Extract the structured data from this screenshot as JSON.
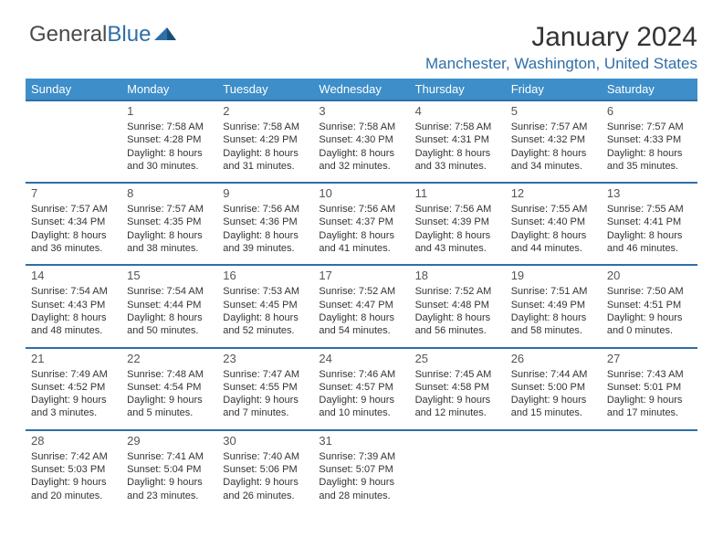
{
  "logo": {
    "text1": "General",
    "text2": "Blue"
  },
  "title": "January 2024",
  "location": "Manchester, Washington, United States",
  "colors": {
    "header_bg": "#3d8ec9",
    "header_text": "#ffffff",
    "border": "#2f6fa7",
    "accent": "#2f6fa7",
    "text": "#333333",
    "daynum": "#555555"
  },
  "day_names": [
    "Sunday",
    "Monday",
    "Tuesday",
    "Wednesday",
    "Thursday",
    "Friday",
    "Saturday"
  ],
  "weeks": [
    [
      {
        "n": "",
        "s": "",
        "t": "",
        "d": ""
      },
      {
        "n": "1",
        "s": "Sunrise: 7:58 AM",
        "t": "Sunset: 4:28 PM",
        "d": "Daylight: 8 hours and 30 minutes."
      },
      {
        "n": "2",
        "s": "Sunrise: 7:58 AM",
        "t": "Sunset: 4:29 PM",
        "d": "Daylight: 8 hours and 31 minutes."
      },
      {
        "n": "3",
        "s": "Sunrise: 7:58 AM",
        "t": "Sunset: 4:30 PM",
        "d": "Daylight: 8 hours and 32 minutes."
      },
      {
        "n": "4",
        "s": "Sunrise: 7:58 AM",
        "t": "Sunset: 4:31 PM",
        "d": "Daylight: 8 hours and 33 minutes."
      },
      {
        "n": "5",
        "s": "Sunrise: 7:57 AM",
        "t": "Sunset: 4:32 PM",
        "d": "Daylight: 8 hours and 34 minutes."
      },
      {
        "n": "6",
        "s": "Sunrise: 7:57 AM",
        "t": "Sunset: 4:33 PM",
        "d": "Daylight: 8 hours and 35 minutes."
      }
    ],
    [
      {
        "n": "7",
        "s": "Sunrise: 7:57 AM",
        "t": "Sunset: 4:34 PM",
        "d": "Daylight: 8 hours and 36 minutes."
      },
      {
        "n": "8",
        "s": "Sunrise: 7:57 AM",
        "t": "Sunset: 4:35 PM",
        "d": "Daylight: 8 hours and 38 minutes."
      },
      {
        "n": "9",
        "s": "Sunrise: 7:56 AM",
        "t": "Sunset: 4:36 PM",
        "d": "Daylight: 8 hours and 39 minutes."
      },
      {
        "n": "10",
        "s": "Sunrise: 7:56 AM",
        "t": "Sunset: 4:37 PM",
        "d": "Daylight: 8 hours and 41 minutes."
      },
      {
        "n": "11",
        "s": "Sunrise: 7:56 AM",
        "t": "Sunset: 4:39 PM",
        "d": "Daylight: 8 hours and 43 minutes."
      },
      {
        "n": "12",
        "s": "Sunrise: 7:55 AM",
        "t": "Sunset: 4:40 PM",
        "d": "Daylight: 8 hours and 44 minutes."
      },
      {
        "n": "13",
        "s": "Sunrise: 7:55 AM",
        "t": "Sunset: 4:41 PM",
        "d": "Daylight: 8 hours and 46 minutes."
      }
    ],
    [
      {
        "n": "14",
        "s": "Sunrise: 7:54 AM",
        "t": "Sunset: 4:43 PM",
        "d": "Daylight: 8 hours and 48 minutes."
      },
      {
        "n": "15",
        "s": "Sunrise: 7:54 AM",
        "t": "Sunset: 4:44 PM",
        "d": "Daylight: 8 hours and 50 minutes."
      },
      {
        "n": "16",
        "s": "Sunrise: 7:53 AM",
        "t": "Sunset: 4:45 PM",
        "d": "Daylight: 8 hours and 52 minutes."
      },
      {
        "n": "17",
        "s": "Sunrise: 7:52 AM",
        "t": "Sunset: 4:47 PM",
        "d": "Daylight: 8 hours and 54 minutes."
      },
      {
        "n": "18",
        "s": "Sunrise: 7:52 AM",
        "t": "Sunset: 4:48 PM",
        "d": "Daylight: 8 hours and 56 minutes."
      },
      {
        "n": "19",
        "s": "Sunrise: 7:51 AM",
        "t": "Sunset: 4:49 PM",
        "d": "Daylight: 8 hours and 58 minutes."
      },
      {
        "n": "20",
        "s": "Sunrise: 7:50 AM",
        "t": "Sunset: 4:51 PM",
        "d": "Daylight: 9 hours and 0 minutes."
      }
    ],
    [
      {
        "n": "21",
        "s": "Sunrise: 7:49 AM",
        "t": "Sunset: 4:52 PM",
        "d": "Daylight: 9 hours and 3 minutes."
      },
      {
        "n": "22",
        "s": "Sunrise: 7:48 AM",
        "t": "Sunset: 4:54 PM",
        "d": "Daylight: 9 hours and 5 minutes."
      },
      {
        "n": "23",
        "s": "Sunrise: 7:47 AM",
        "t": "Sunset: 4:55 PM",
        "d": "Daylight: 9 hours and 7 minutes."
      },
      {
        "n": "24",
        "s": "Sunrise: 7:46 AM",
        "t": "Sunset: 4:57 PM",
        "d": "Daylight: 9 hours and 10 minutes."
      },
      {
        "n": "25",
        "s": "Sunrise: 7:45 AM",
        "t": "Sunset: 4:58 PM",
        "d": "Daylight: 9 hours and 12 minutes."
      },
      {
        "n": "26",
        "s": "Sunrise: 7:44 AM",
        "t": "Sunset: 5:00 PM",
        "d": "Daylight: 9 hours and 15 minutes."
      },
      {
        "n": "27",
        "s": "Sunrise: 7:43 AM",
        "t": "Sunset: 5:01 PM",
        "d": "Daylight: 9 hours and 17 minutes."
      }
    ],
    [
      {
        "n": "28",
        "s": "Sunrise: 7:42 AM",
        "t": "Sunset: 5:03 PM",
        "d": "Daylight: 9 hours and 20 minutes."
      },
      {
        "n": "29",
        "s": "Sunrise: 7:41 AM",
        "t": "Sunset: 5:04 PM",
        "d": "Daylight: 9 hours and 23 minutes."
      },
      {
        "n": "30",
        "s": "Sunrise: 7:40 AM",
        "t": "Sunset: 5:06 PM",
        "d": "Daylight: 9 hours and 26 minutes."
      },
      {
        "n": "31",
        "s": "Sunrise: 7:39 AM",
        "t": "Sunset: 5:07 PM",
        "d": "Daylight: 9 hours and 28 minutes."
      },
      {
        "n": "",
        "s": "",
        "t": "",
        "d": ""
      },
      {
        "n": "",
        "s": "",
        "t": "",
        "d": ""
      },
      {
        "n": "",
        "s": "",
        "t": "",
        "d": ""
      }
    ]
  ]
}
